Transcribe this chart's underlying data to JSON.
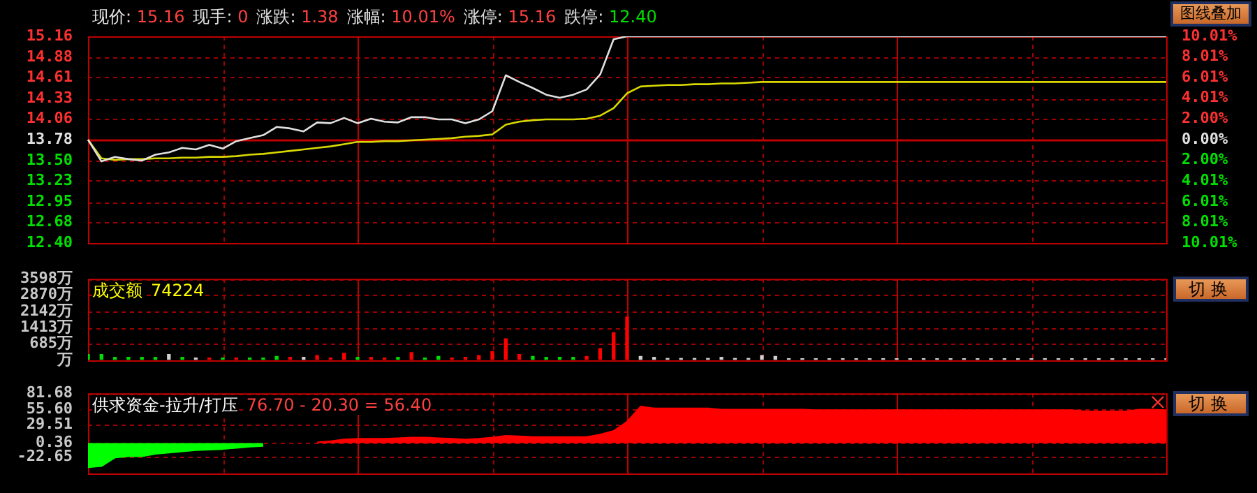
{
  "chart_data": [
    {
      "type": "line",
      "annotations": [
        "现价: 15.16",
        "现手: 0",
        "涨跌: 1.38",
        "涨幅: 10.01%",
        "涨停: 15.16",
        "跌停: 12.40",
        "图线叠加"
      ],
      "categories": [
        null,
        null,
        null,
        null,
        null,
        null,
        null,
        null,
        null,
        null,
        null,
        null,
        null,
        null,
        null,
        null,
        null,
        null,
        null,
        null,
        null,
        null,
        null,
        null,
        null,
        null,
        null,
        null,
        null,
        null,
        null,
        null,
        null,
        null,
        null,
        null,
        null,
        null,
        null,
        null,
        null,
        null,
        null,
        null,
        null,
        null,
        null,
        null,
        null,
        null,
        null,
        null,
        null,
        null,
        null,
        null,
        null,
        null,
        null,
        null,
        null,
        null,
        null,
        null,
        null,
        null,
        null,
        null,
        null,
        null,
        null,
        null,
        null,
        null,
        null,
        null,
        null,
        null,
        null,
        null,
        null
      ],
      "series": [
        {
          "color": "#e0e0e0",
          "values": [
            13.78,
            13.49,
            13.55,
            13.52,
            13.5,
            13.58,
            13.61,
            13.67,
            13.65,
            13.71,
            13.66,
            13.76,
            13.8,
            13.84,
            13.95,
            13.93,
            13.89,
            14.01,
            14.0,
            14.07,
            14.0,
            14.06,
            14.02,
            14.01,
            14.08,
            14.08,
            14.05,
            14.05,
            14.0,
            14.05,
            14.16,
            14.64,
            14.55,
            14.47,
            14.38,
            14.34,
            14.38,
            14.45,
            14.65,
            15.12,
            15.16,
            15.16,
            15.16,
            15.16,
            15.16,
            15.16,
            15.16,
            15.16,
            15.16,
            15.16,
            15.16,
            15.16,
            15.16,
            15.16,
            15.16,
            15.16,
            15.16,
            15.16,
            15.16,
            15.16,
            15.16,
            15.16,
            15.16,
            15.16,
            15.16,
            15.16,
            15.16,
            15.16,
            15.16,
            15.16,
            15.16,
            15.16,
            15.16,
            15.16,
            15.16,
            15.16,
            15.16,
            15.16,
            15.16,
            15.16,
            15.16
          ]
        },
        {
          "color": "#d8d800",
          "values": [
            13.78,
            13.53,
            13.51,
            13.52,
            13.52,
            13.53,
            13.53,
            13.54,
            13.54,
            13.55,
            13.55,
            13.56,
            13.58,
            13.59,
            13.61,
            13.63,
            13.65,
            13.67,
            13.69,
            13.72,
            13.75,
            13.75,
            13.76,
            13.76,
            13.77,
            13.78,
            13.79,
            13.8,
            13.82,
            13.83,
            13.85,
            13.98,
            14.02,
            14.04,
            14.05,
            14.05,
            14.05,
            14.06,
            14.1,
            14.2,
            14.4,
            14.49,
            14.5,
            14.51,
            14.51,
            14.52,
            14.52,
            14.53,
            14.53,
            14.54,
            14.55,
            14.55,
            14.55,
            14.55,
            14.55,
            14.55,
            14.55,
            14.55,
            14.55,
            14.55,
            14.55,
            14.55,
            14.55,
            14.55,
            14.55,
            14.55,
            14.55,
            14.55,
            14.55,
            14.55,
            14.55,
            14.55,
            14.55,
            14.55,
            14.55,
            14.55,
            14.55,
            14.55,
            14.55,
            14.55,
            14.55
          ]
        }
      ],
      "ylim": [
        12.4,
        15.16
      ],
      "yticks": [
        15.16,
        14.88,
        14.61,
        14.33,
        14.06,
        13.78,
        {
          "value": 13.5,
          "label": "13.50"
        },
        13.23,
        12.95,
        12.68,
        {
          "value": 12.4,
          "label": "12.40"
        }
      ],
      "y2lim": [
        -10.01,
        10.01
      ],
      "y2ticks": [
        {
          "value": 10.01,
          "label": "10.01%"
        },
        {
          "value": 8.01,
          "label": "8.01%"
        },
        {
          "value": 6.01,
          "label": "6.01%"
        },
        {
          "value": 4.01,
          "label": "4.01%"
        },
        {
          "value": 2,
          "label": "2.00%"
        },
        {
          "value": 0,
          "label": "0.00%"
        },
        {
          "value": -2,
          "label": "2.00%"
        },
        {
          "value": -4.01,
          "label": "4.01%"
        },
        {
          "value": -6.01,
          "label": "6.01%"
        },
        {
          "value": -8.01,
          "label": "8.01%"
        },
        {
          "value": -10.01,
          "label": "10.01%"
        }
      ],
      "ref_lines": [
        {
          "axis": "y",
          "value": 13.78,
          "color": "#c00000"
        }
      ],
      "grid": true,
      "legend": false,
      "tick_labels": "y",
      "marker": "none",
      "line_style": "solid"
    },
    {
      "type": "bar",
      "title": "成交额",
      "annotations": [
        "74224",
        "切换"
      ],
      "categories": [
        null,
        null,
        null,
        null,
        null,
        null,
        null,
        null,
        null,
        null,
        null,
        null,
        null,
        null,
        null,
        null,
        null,
        null,
        null,
        null,
        null,
        null,
        null,
        null,
        null,
        null,
        null,
        null,
        null,
        null,
        null,
        null,
        null,
        null,
        null,
        null,
        null,
        null,
        null,
        null,
        null,
        null,
        null,
        null,
        null,
        null,
        null,
        null,
        null,
        null,
        null,
        null,
        null,
        null,
        null,
        null,
        null,
        null,
        null,
        null,
        null,
        null,
        null,
        null,
        null,
        null,
        null,
        null,
        null,
        null,
        null,
        null,
        null,
        null,
        null,
        null,
        null,
        null,
        null,
        null,
        null
      ],
      "values": [
        220,
        220,
        90,
        90,
        90,
        90,
        220,
        90,
        60,
        60,
        60,
        60,
        60,
        60,
        130,
        90,
        90,
        170,
        60,
        270,
        90,
        90,
        60,
        90,
        300,
        60,
        130,
        60,
        90,
        170,
        350,
        920,
        220,
        130,
        90,
        90,
        90,
        130,
        480,
        1190,
        1890,
        130,
        90,
        40,
        40,
        40,
        40,
        90,
        40,
        40,
        170,
        130,
        30,
        30,
        30,
        30,
        30,
        30,
        30,
        30,
        30,
        30,
        30,
        30,
        30,
        30,
        30,
        30,
        30,
        30,
        30,
        30,
        30,
        30,
        30,
        30,
        30,
        30,
        30,
        30,
        30
      ],
      "colors": [
        "#00e000",
        "#00e000",
        "#00e000",
        "#00e000",
        "#00e000",
        "#00e000",
        "#d0d0d0",
        "#00e000",
        "#d0d0d0",
        "#ff0000",
        "#00e000",
        "#ff0000",
        "#00e000",
        "#00e000",
        "#00e000",
        "#ff0000",
        "#d0d0d0",
        "#ff0000",
        "#ff0000",
        "#ff0000",
        "#00e000",
        "#ff0000",
        "#ff0000",
        "#00e000",
        "#ff0000",
        "#00e000",
        "#00e000",
        "#ff0000",
        "#ff0000",
        "#ff0000",
        "#ff0000",
        "#ff0000",
        "#ff0000",
        "#00e000",
        "#00e000",
        "#00e000",
        "#00e000",
        "#ff0000",
        "#ff0000",
        "#ff0000",
        "#ff0000",
        "#d0d0d0",
        "#d0d0d0",
        "#d0d0d0",
        "#d0d0d0",
        "#d0d0d0",
        "#d0d0d0",
        "#d0d0d0",
        "#d0d0d0",
        "#d0d0d0",
        "#d0d0d0",
        "#d0d0d0",
        "#d0d0d0",
        "#d0d0d0",
        "#d0d0d0",
        "#d0d0d0",
        "#d0d0d0",
        "#d0d0d0",
        "#d0d0d0",
        "#d0d0d0",
        "#d0d0d0",
        "#d0d0d0",
        "#d0d0d0",
        "#d0d0d0",
        "#d0d0d0",
        "#d0d0d0",
        "#d0d0d0",
        "#d0d0d0",
        "#d0d0d0",
        "#d0d0d0",
        "#d0d0d0",
        "#d0d0d0",
        "#d0d0d0",
        "#d0d0d0",
        "#d0d0d0",
        "#d0d0d0",
        "#d0d0d0",
        "#d0d0d0",
        "#d0d0d0",
        "#d0d0d0",
        "#d0d0d0"
      ],
      "ylim": [
        -43,
        3598
      ],
      "yticks": [
        {
          "value": 3598,
          "label": "3598万"
        },
        {
          "value": 2870,
          "label": "2870万"
        },
        {
          "value": 2142,
          "label": "2142万"
        },
        {
          "value": 1413,
          "label": "1413万"
        },
        {
          "value": 685,
          "label": "685万"
        },
        {
          "value": -43,
          "label": "万"
        }
      ],
      "grid": true,
      "legend": false,
      "tick_labels": "y"
    },
    {
      "type": "area",
      "title": "供求资金-拉升/打压",
      "annotations": [
        "76.70 - 20.30 = 56.40",
        "切换"
      ],
      "categories": [
        null,
        null,
        null,
        null,
        null,
        null,
        null,
        null,
        null,
        null,
        null,
        null,
        null,
        null,
        null,
        null,
        null,
        null,
        null,
        null,
        null,
        null,
        null,
        null,
        null,
        null,
        null,
        null,
        null,
        null,
        null,
        null,
        null,
        null,
        null,
        null,
        null,
        null,
        null,
        null,
        null,
        null,
        null,
        null,
        null,
        null,
        null,
        null,
        null,
        null,
        null,
        null,
        null,
        null,
        null,
        null,
        null,
        null,
        null,
        null,
        null,
        null,
        null,
        null,
        null,
        null,
        null,
        null,
        null,
        null,
        null,
        null,
        null,
        null,
        null,
        null,
        null,
        null,
        null,
        null,
        null
      ],
      "series": [
        {
          "color": "#00ff00",
          "values": [
            -40,
            -38,
            -24,
            -22,
            -22,
            -18,
            -16,
            -14,
            -12,
            -11,
            -10,
            -8,
            -6,
            -5,
            null,
            null,
            null,
            null,
            null,
            null,
            null,
            null,
            null,
            null,
            null,
            null,
            null,
            null,
            null,
            null,
            null,
            null,
            null,
            null,
            null,
            null,
            null,
            null,
            null,
            null,
            null,
            null,
            null,
            null,
            null,
            null,
            null,
            null,
            null,
            null,
            null,
            null,
            null,
            null,
            null,
            null,
            null,
            null,
            null,
            null,
            null,
            null,
            null,
            null,
            null,
            null,
            null,
            null,
            null,
            null,
            null,
            null,
            null,
            null,
            null,
            null,
            null,
            null,
            null,
            null,
            null
          ]
        },
        {
          "color": "#ff0000",
          "values": [
            null,
            null,
            null,
            null,
            null,
            null,
            null,
            null,
            null,
            null,
            null,
            null,
            null,
            null,
            null,
            null,
            null,
            1,
            3,
            6,
            7,
            7,
            7,
            8,
            9,
            9,
            8,
            7,
            6,
            7,
            9,
            12,
            11,
            10,
            10,
            10,
            10,
            10,
            14,
            20,
            35,
            60,
            57,
            57,
            57,
            57,
            57,
            55,
            55,
            55,
            55,
            55,
            55,
            55,
            54,
            54,
            54,
            54,
            54,
            54,
            54,
            54,
            54,
            54,
            54,
            54,
            54,
            54,
            54,
            54,
            54,
            54,
            54,
            54,
            52,
            52,
            52,
            52,
            55,
            55,
            54
          ]
        }
      ],
      "ylim": [
        -50,
        81.68
      ],
      "yticks": [
        81.68,
        {
          "value": 55.6,
          "label": "55.60"
        },
        29.51,
        0.36,
        -22.65
      ],
      "grid": true,
      "legend": false,
      "tick_labels": "y"
    }
  ]
}
